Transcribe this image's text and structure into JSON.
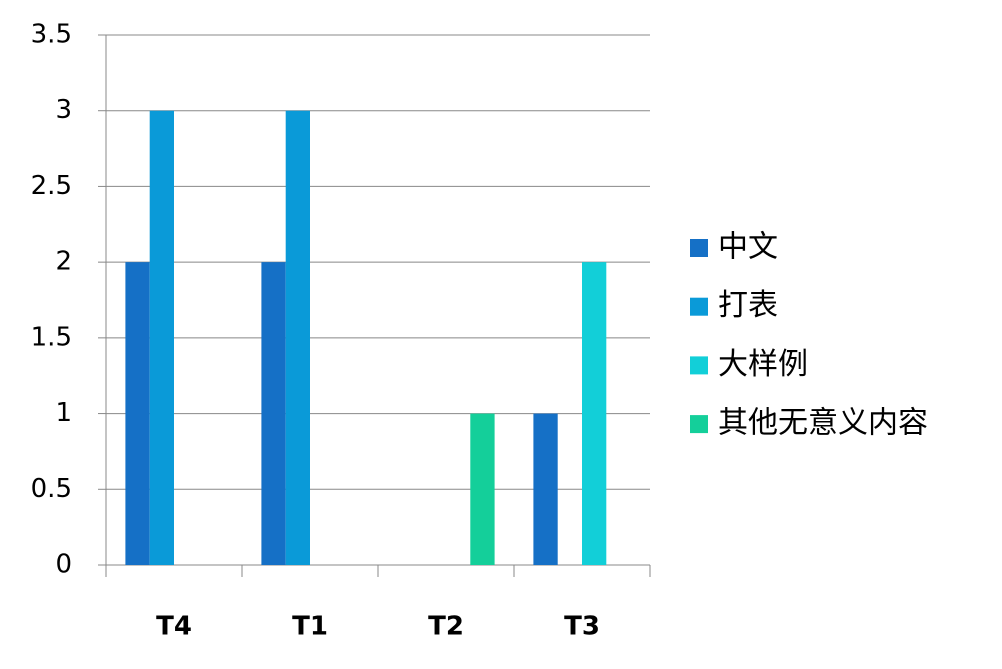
{
  "chart_data": {
    "type": "bar",
    "categories": [
      "T4",
      "T1",
      "T2",
      "T3"
    ],
    "series": [
      {
        "name": "中文",
        "color": "#1570c6",
        "values": [
          2,
          2,
          0,
          1
        ]
      },
      {
        "name": "打表",
        "color": "#0a9ad8",
        "values": [
          3,
          3,
          0,
          0
        ]
      },
      {
        "name": "大样例",
        "color": "#12cfd8",
        "values": [
          0,
          0,
          0,
          2
        ]
      },
      {
        "name": "其他无意义内容",
        "color": "#14cf9a",
        "values": [
          0,
          0,
          1,
          0
        ]
      }
    ],
    "ylim": [
      0,
      3.5
    ],
    "yticks": [
      0,
      0.5,
      1,
      1.5,
      2,
      2.5,
      3,
      3.5
    ],
    "grid": true,
    "legend": "right"
  }
}
